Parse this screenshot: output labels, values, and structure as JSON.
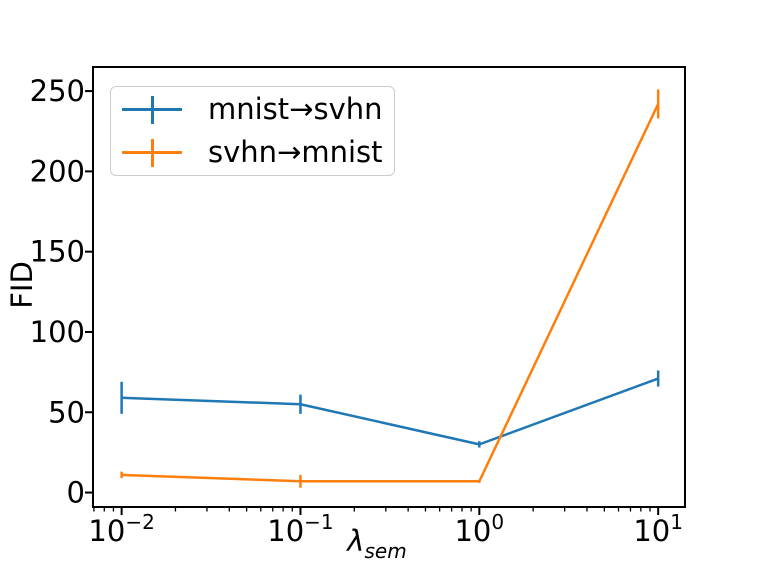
{
  "chart_data": {
    "type": "line",
    "title": "",
    "xlabel": {
      "symbol": "λ",
      "subscript": "sem"
    },
    "ylabel": "FID",
    "xscale": "log",
    "grid": false,
    "legend_position": "upper left",
    "x": [
      0.01,
      0.1,
      1,
      10
    ],
    "series": [
      {
        "name": "mnist→svhn",
        "color": "#1f77b4",
        "values": [
          59,
          55,
          30,
          71
        ],
        "yerr": [
          10,
          6,
          2,
          5
        ]
      },
      {
        "name": "svhn→mnist",
        "color": "#ff7f0e",
        "values": [
          11,
          7,
          7,
          242
        ],
        "yerr": [
          2,
          4,
          1,
          9
        ]
      }
    ],
    "x_ticks": [
      {
        "value": 0.01,
        "base": "10",
        "exp": "−2"
      },
      {
        "value": 0.1,
        "base": "10",
        "exp": "−1"
      },
      {
        "value": 1,
        "base": "10",
        "exp": "0"
      },
      {
        "value": 10,
        "base": "10",
        "exp": "1"
      }
    ],
    "y_ticks": [
      "0",
      "50",
      "100",
      "150",
      "200",
      "250"
    ],
    "y_tick_values": [
      0,
      50,
      100,
      150,
      200,
      250
    ],
    "xlim_log10": [
      -2.16,
      1.15
    ],
    "ylim": [
      -9,
      265
    ],
    "axis_color": "#000000"
  }
}
